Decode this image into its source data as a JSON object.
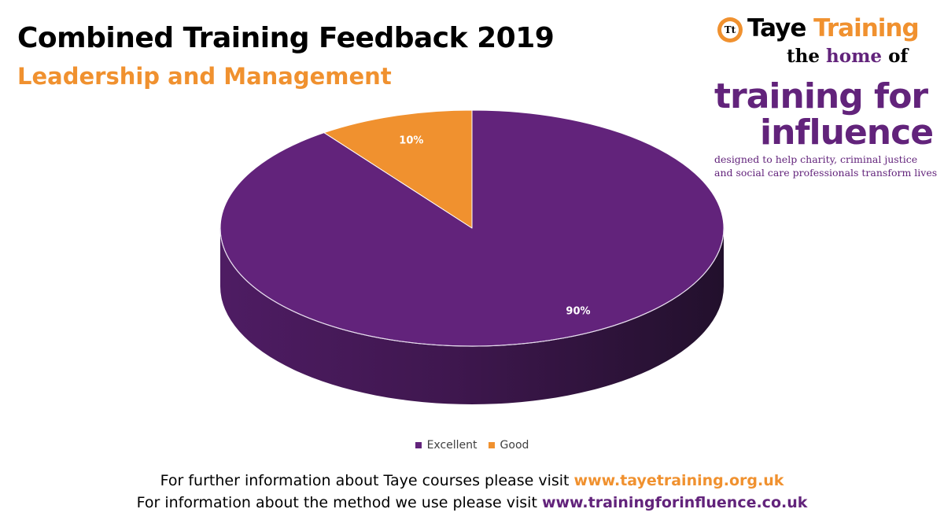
{
  "header": {
    "title": "Combined Training Feedback 2019",
    "subtitle": "Leadership and Management"
  },
  "logo": {
    "mark": "Tt",
    "brand_word_1": "Taye",
    "brand_word_2": "Training",
    "tagline_prefix": "the",
    "tagline_home": "home",
    "tagline_suffix": "of",
    "program_line_1": "training for",
    "program_line_2": "influence",
    "description_line_1": "designed to help charity, criminal justice",
    "description_line_2": "and social care professionals transform lives"
  },
  "chart_data": {
    "type": "pie",
    "style": "3d",
    "title": "",
    "categories": [
      "Excellent",
      "Good"
    ],
    "values": [
      90,
      10
    ],
    "data_labels": [
      "90%",
      "10%"
    ],
    "colors": [
      "#62237b",
      "#f0912f"
    ],
    "legend": "bottom"
  },
  "footer": {
    "line1_text": "For further information about Taye courses please visit ",
    "line1_link": "www.tayetraining.org.uk",
    "line2_text": "For information about the method we use please visit ",
    "line2_link": "www.trainingforinfluence.co.uk"
  }
}
